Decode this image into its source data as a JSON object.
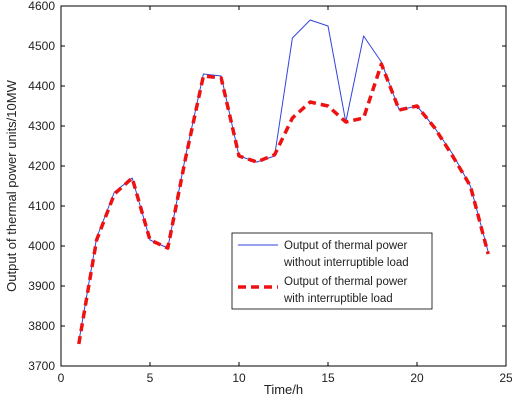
{
  "chart_data": {
    "type": "line",
    "xlabel": "Time/h",
    "ylabel": "Output of thermal power units/10MW",
    "xlim": [
      0,
      25
    ],
    "ylim": [
      3700,
      4600
    ],
    "xticks": [
      0,
      5,
      10,
      15,
      20,
      25
    ],
    "yticks": [
      3700,
      3800,
      3900,
      4000,
      4100,
      4200,
      4300,
      4400,
      4500,
      4600
    ],
    "grid": false,
    "legend_position": "lower-right",
    "x": [
      1,
      2,
      3,
      4,
      5,
      6,
      7,
      8,
      9,
      10,
      11,
      12,
      13,
      14,
      15,
      16,
      17,
      18,
      19,
      20,
      21,
      22,
      23,
      24
    ],
    "series": [
      {
        "name_line1": "Output of thermal power",
        "name_line2": "without interruptible load",
        "color": "#3344dd",
        "style": "solid",
        "values": [
          3760,
          4020,
          4135,
          4170,
          4015,
          3995,
          4225,
          4430,
          4425,
          4225,
          4210,
          4225,
          4520,
          4565,
          4550,
          4310,
          4525,
          4460,
          4340,
          4350,
          4295,
          4230,
          4150,
          3985
        ]
      },
      {
        "name_line1": "Output of thermal power",
        "name_line2": "with interruptible load",
        "color": "#ee1111",
        "style": "dashed",
        "values": [
          3755,
          4015,
          4130,
          4170,
          4015,
          3995,
          4220,
          4425,
          4420,
          4225,
          4210,
          4228,
          4320,
          4360,
          4350,
          4310,
          4320,
          4455,
          4340,
          4350,
          4295,
          4225,
          4150,
          3980
        ]
      }
    ]
  }
}
